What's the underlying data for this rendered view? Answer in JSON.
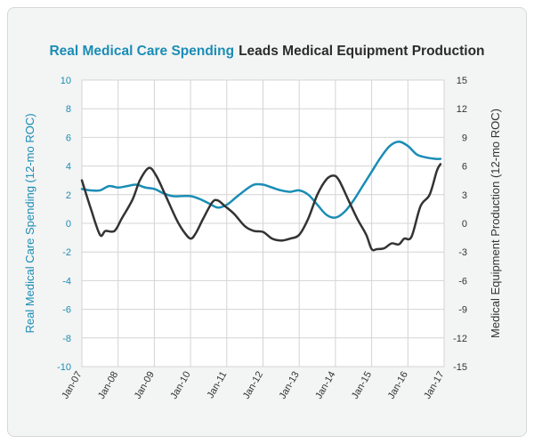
{
  "chart_data": {
    "type": "line",
    "title_part1": "Real Medical Care Spending",
    "title_part2": "Leads Medical Equipment Production",
    "ylabel_left": "Real Medical Care Spending (12-mo ROC)",
    "ylabel_right": "Medical Equipment Production (12-mo ROC)",
    "ylim_left": [
      -10,
      10
    ],
    "ylim_right": [
      -15,
      15
    ],
    "yticks_left": [
      "10",
      "8",
      "6",
      "4",
      "2",
      "0",
      "-2",
      "-4",
      "-6",
      "-8",
      "-10"
    ],
    "yticks_right": [
      "15",
      "12",
      "9",
      "6",
      "3",
      "0",
      "-3",
      "-6",
      "-9",
      "-12",
      "-15"
    ],
    "xlim": [
      2007,
      2017
    ],
    "xticks": [
      "Jan-07",
      "Jan-08",
      "Jan-09",
      "Jan-10",
      "Jan-11",
      "Jan-12",
      "Jan-13",
      "Jan-14",
      "Jan-15",
      "Jan-16",
      "Jan-17"
    ],
    "grid": true,
    "colors": {
      "spending": "#1a8db5",
      "production": "#333333"
    },
    "series": [
      {
        "axis": "left",
        "points": [
          [
            2007.0,
            2.4
          ],
          [
            2007.25,
            2.3
          ],
          [
            2007.5,
            2.3
          ],
          [
            2007.75,
            2.6
          ],
          [
            2008.0,
            2.5
          ],
          [
            2008.25,
            2.6
          ],
          [
            2008.5,
            2.7
          ],
          [
            2008.75,
            2.5
          ],
          [
            2009.0,
            2.4
          ],
          [
            2009.25,
            2.1
          ],
          [
            2009.5,
            1.9
          ],
          [
            2009.75,
            1.9
          ],
          [
            2010.0,
            1.9
          ],
          [
            2010.25,
            1.7
          ],
          [
            2010.5,
            1.4
          ],
          [
            2010.75,
            1.1
          ],
          [
            2011.0,
            1.3
          ],
          [
            2011.25,
            1.8
          ],
          [
            2011.5,
            2.3
          ],
          [
            2011.75,
            2.7
          ],
          [
            2012.0,
            2.7
          ],
          [
            2012.25,
            2.5
          ],
          [
            2012.5,
            2.3
          ],
          [
            2012.75,
            2.2
          ],
          [
            2013.0,
            2.3
          ],
          [
            2013.25,
            2.0
          ],
          [
            2013.5,
            1.3
          ],
          [
            2013.75,
            0.6
          ],
          [
            2014.0,
            0.4
          ],
          [
            2014.25,
            0.8
          ],
          [
            2014.5,
            1.6
          ],
          [
            2014.75,
            2.6
          ],
          [
            2015.0,
            3.6
          ],
          [
            2015.25,
            4.6
          ],
          [
            2015.5,
            5.4
          ],
          [
            2015.75,
            5.7
          ],
          [
            2016.0,
            5.4
          ],
          [
            2016.25,
            4.8
          ],
          [
            2016.5,
            4.6
          ],
          [
            2016.75,
            4.5
          ],
          [
            2016.9,
            4.5
          ]
        ]
      },
      {
        "axis": "right",
        "points": [
          [
            2007.0,
            4.5
          ],
          [
            2007.25,
            1.5
          ],
          [
            2007.5,
            -1.2
          ],
          [
            2007.65,
            -0.8
          ],
          [
            2007.9,
            -0.8
          ],
          [
            2008.1,
            0.5
          ],
          [
            2008.4,
            2.5
          ],
          [
            2008.6,
            4.5
          ],
          [
            2008.85,
            5.8
          ],
          [
            2009.05,
            5.0
          ],
          [
            2009.3,
            3.0
          ],
          [
            2009.6,
            0.5
          ],
          [
            2009.8,
            -0.8
          ],
          [
            2010.0,
            -1.6
          ],
          [
            2010.15,
            -1.0
          ],
          [
            2010.35,
            0.5
          ],
          [
            2010.6,
            2.2
          ],
          [
            2010.75,
            2.4
          ],
          [
            2010.95,
            1.8
          ],
          [
            2011.2,
            1.0
          ],
          [
            2011.5,
            -0.3
          ],
          [
            2011.75,
            -0.8
          ],
          [
            2012.0,
            -0.9
          ],
          [
            2012.25,
            -1.6
          ],
          [
            2012.5,
            -1.8
          ],
          [
            2012.75,
            -1.6
          ],
          [
            2013.0,
            -1.2
          ],
          [
            2013.25,
            0.5
          ],
          [
            2013.5,
            3.0
          ],
          [
            2013.75,
            4.6
          ],
          [
            2013.95,
            5.0
          ],
          [
            2014.1,
            4.5
          ],
          [
            2014.35,
            2.5
          ],
          [
            2014.6,
            0.5
          ],
          [
            2014.85,
            -1.2
          ],
          [
            2015.0,
            -2.7
          ],
          [
            2015.15,
            -2.7
          ],
          [
            2015.35,
            -2.6
          ],
          [
            2015.55,
            -2.1
          ],
          [
            2015.75,
            -2.2
          ],
          [
            2015.9,
            -1.6
          ],
          [
            2016.1,
            -1.4
          ],
          [
            2016.35,
            1.8
          ],
          [
            2016.6,
            3.0
          ],
          [
            2016.8,
            5.5
          ],
          [
            2016.9,
            6.2
          ]
        ]
      }
    ]
  }
}
